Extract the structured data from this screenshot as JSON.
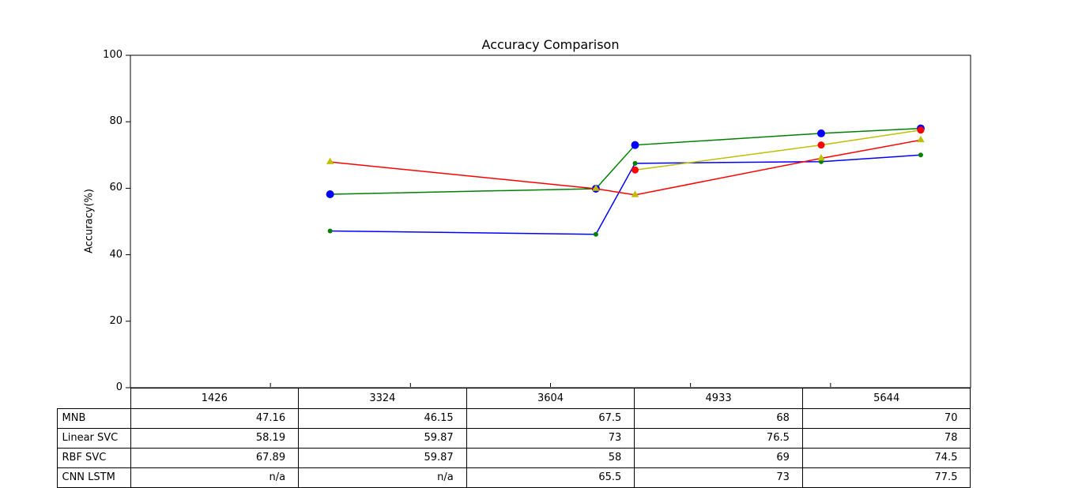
{
  "figure": {
    "title": "Accuracy Comparison"
  },
  "axes": {
    "ylabel": "Accuracy(%)",
    "y_tick_labels": [
      "0",
      "20",
      "40",
      "60",
      "80",
      "100"
    ],
    "ylim": [
      0,
      100
    ],
    "xlim": [
      0,
      6000
    ],
    "x_tick_positions": [
      1000,
      2000,
      3000,
      4000,
      5000
    ]
  },
  "chart_data": {
    "type": "line",
    "title": "Accuracy Comparison",
    "xlabel": "",
    "ylabel": "Accuracy(%)",
    "ylim": [
      0,
      100
    ],
    "xlim": [
      0,
      6000
    ],
    "grid": false,
    "x": [
      1426,
      3324,
      3604,
      4933,
      5644
    ],
    "series": [
      {
        "name": "MNB",
        "values": [
          47.16,
          46.15,
          67.5,
          68,
          70
        ],
        "line_color": "#0000ff",
        "marker": "circle",
        "marker_color": "#008000",
        "marker_radius": 3
      },
      {
        "name": "Linear SVC",
        "values": [
          58.19,
          59.87,
          73,
          76.5,
          78
        ],
        "line_color": "#008000",
        "marker": "circle",
        "marker_color": "#0000ff",
        "marker_radius": 5
      },
      {
        "name": "RBF SVC",
        "values": [
          67.89,
          59.87,
          58,
          69,
          74.5
        ],
        "line_color": "#ff0000",
        "marker": "triangle",
        "marker_color": "#bfbf00",
        "marker_radius": 5.5
      },
      {
        "name": "CNN LSTM",
        "values": [
          null,
          null,
          65.5,
          73,
          77.5
        ],
        "line_color": "#bfbf00",
        "marker": "circle",
        "marker_color": "#ff0000",
        "marker_radius": 4.5
      }
    ]
  },
  "table": {
    "column_headers": [
      "1426",
      "3324",
      "3604",
      "4933",
      "5644"
    ],
    "rows": [
      {
        "label": "MNB",
        "cells": [
          "47.16",
          "46.15",
          "67.5",
          "68",
          "70"
        ]
      },
      {
        "label": "Linear SVC",
        "cells": [
          "58.19",
          "59.87",
          "73",
          "76.5",
          "78"
        ]
      },
      {
        "label": "RBF SVC",
        "cells": [
          "67.89",
          "59.87",
          "58",
          "69",
          "74.5"
        ]
      },
      {
        "label": "CNN LSTM",
        "cells": [
          "n/a",
          "n/a",
          "65.5",
          "73",
          "77.5"
        ]
      }
    ]
  }
}
